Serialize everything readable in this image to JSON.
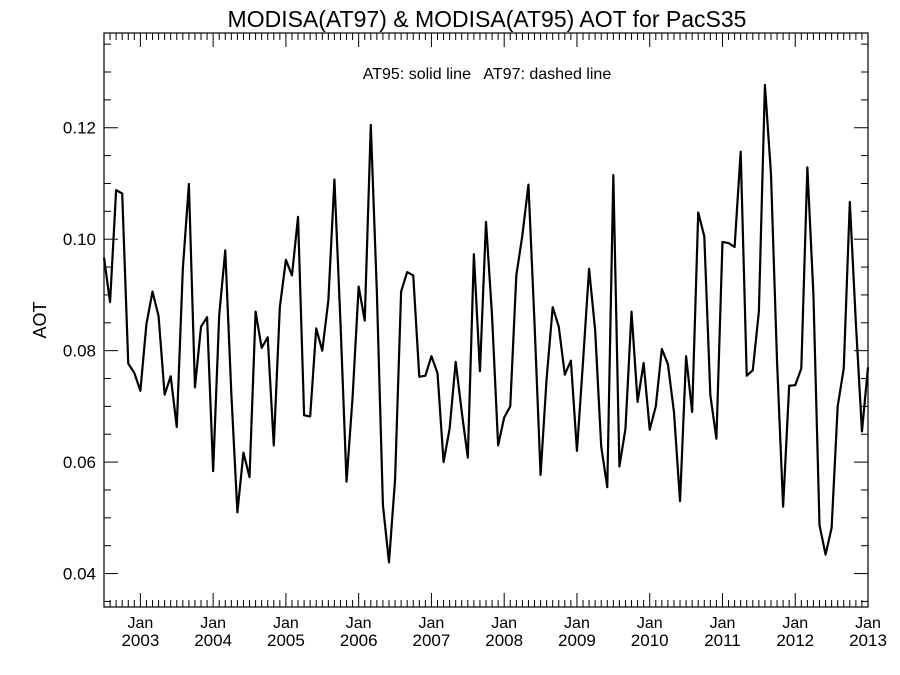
{
  "chart_data": {
    "type": "line",
    "title": "MODISA(AT97) & MODISA(AT95)  AOT for PacS35",
    "annotation": "AT95: solid line   AT97: dashed line",
    "xlabel": "",
    "ylabel": "AOT",
    "ylim": [
      0.034,
      0.137
    ],
    "xlim": [
      "2002-07",
      "2013-01"
    ],
    "yticks": [
      "0.04",
      "0.06",
      "0.08",
      "0.10",
      "0.12"
    ],
    "yticks_values": [
      0.04,
      0.06,
      0.08,
      0.1,
      0.12
    ],
    "xticks": [
      {
        "month": "Jan",
        "year": "2003",
        "date": "2003-01"
      },
      {
        "month": "Jan",
        "year": "2004",
        "date": "2004-01"
      },
      {
        "month": "Jan",
        "year": "2005",
        "date": "2005-01"
      },
      {
        "month": "Jan",
        "year": "2006",
        "date": "2006-01"
      },
      {
        "month": "Jan",
        "year": "2007",
        "date": "2007-01"
      },
      {
        "month": "Jan",
        "year": "2008",
        "date": "2008-01"
      },
      {
        "month": "Jan",
        "year": "2009",
        "date": "2009-01"
      },
      {
        "month": "Jan",
        "year": "2010",
        "date": "2010-01"
      },
      {
        "month": "Jan",
        "year": "2011",
        "date": "2011-01"
      },
      {
        "month": "Jan",
        "year": "2012",
        "date": "2012-01"
      },
      {
        "month": "Jan",
        "year": "2013",
        "date": "2013-01"
      }
    ],
    "grid": false,
    "series": [
      {
        "style": "solid",
        "color": "#000000",
        "points": [
          [
            "2002-07",
            0.0967
          ],
          [
            "2002-08",
            0.0887
          ],
          [
            "2002-09",
            0.1088
          ],
          [
            "2002-10",
            0.1082
          ],
          [
            "2002-11",
            0.0777
          ],
          [
            "2002-12",
            0.076
          ],
          [
            "2003-01",
            0.0728
          ],
          [
            "2003-02",
            0.0848
          ],
          [
            "2003-03",
            0.0906
          ],
          [
            "2003-04",
            0.0862
          ],
          [
            "2003-05",
            0.0721
          ],
          [
            "2003-06",
            0.0754
          ],
          [
            "2003-07",
            0.0663
          ],
          [
            "2003-08",
            0.0947
          ],
          [
            "2003-09",
            0.1099
          ],
          [
            "2003-10",
            0.0734
          ],
          [
            "2003-11",
            0.0843
          ],
          [
            "2003-12",
            0.086
          ],
          [
            "2004-01",
            0.0584
          ],
          [
            "2004-02",
            0.0864
          ],
          [
            "2004-03",
            0.098
          ],
          [
            "2004-04",
            0.0723
          ],
          [
            "2004-05",
            0.051
          ],
          [
            "2004-06",
            0.0617
          ],
          [
            "2004-07",
            0.0573
          ],
          [
            "2004-08",
            0.087
          ],
          [
            "2004-09",
            0.0805
          ],
          [
            "2004-10",
            0.0824
          ],
          [
            "2004-11",
            0.063
          ],
          [
            "2004-12",
            0.0878
          ],
          [
            "2005-01",
            0.0963
          ],
          [
            "2005-02",
            0.0935
          ],
          [
            "2005-03",
            0.104
          ],
          [
            "2005-04",
            0.0684
          ],
          [
            "2005-05",
            0.0682
          ],
          [
            "2005-06",
            0.084
          ],
          [
            "2005-07",
            0.08
          ],
          [
            "2005-08",
            0.089
          ],
          [
            "2005-09",
            0.1107
          ],
          [
            "2005-10",
            0.085
          ],
          [
            "2005-11",
            0.0565
          ],
          [
            "2005-12",
            0.0717
          ],
          [
            "2006-01",
            0.0915
          ],
          [
            "2006-02",
            0.0854
          ],
          [
            "2006-03",
            0.1205
          ],
          [
            "2006-04",
            0.0905
          ],
          [
            "2006-05",
            0.0523
          ],
          [
            "2006-06",
            0.042
          ],
          [
            "2006-07",
            0.0568
          ],
          [
            "2006-08",
            0.0906
          ],
          [
            "2006-09",
            0.0941
          ],
          [
            "2006-10",
            0.0935
          ],
          [
            "2006-11",
            0.0753
          ],
          [
            "2006-12",
            0.0755
          ],
          [
            "2007-01",
            0.079
          ],
          [
            "2007-02",
            0.076
          ],
          [
            "2007-03",
            0.06
          ],
          [
            "2007-04",
            0.066
          ],
          [
            "2007-05",
            0.078
          ],
          [
            "2007-06",
            0.069
          ],
          [
            "2007-07",
            0.0608
          ],
          [
            "2007-08",
            0.0973
          ],
          [
            "2007-09",
            0.0763
          ],
          [
            "2007-10",
            0.1031
          ],
          [
            "2007-11",
            0.0862
          ],
          [
            "2007-12",
            0.063
          ],
          [
            "2008-01",
            0.068
          ],
          [
            "2008-02",
            0.07
          ],
          [
            "2008-03",
            0.0935
          ],
          [
            "2008-04",
            0.1007
          ],
          [
            "2008-05",
            0.1098
          ],
          [
            "2008-06",
            0.085
          ],
          [
            "2008-07",
            0.0577
          ],
          [
            "2008-08",
            0.075
          ],
          [
            "2008-09",
            0.0878
          ],
          [
            "2008-10",
            0.0843
          ],
          [
            "2008-11",
            0.0757
          ],
          [
            "2008-12",
            0.0782
          ],
          [
            "2009-01",
            0.062
          ],
          [
            "2009-02",
            0.078
          ],
          [
            "2009-03",
            0.0947
          ],
          [
            "2009-04",
            0.0837
          ],
          [
            "2009-05",
            0.0628
          ],
          [
            "2009-06",
            0.0555
          ],
          [
            "2009-07",
            0.1115
          ],
          [
            "2009-08",
            0.0592
          ],
          [
            "2009-09",
            0.066
          ],
          [
            "2009-10",
            0.087
          ],
          [
            "2009-11",
            0.0708
          ],
          [
            "2009-12",
            0.0778
          ],
          [
            "2010-01",
            0.0658
          ],
          [
            "2010-02",
            0.07
          ],
          [
            "2010-03",
            0.0803
          ],
          [
            "2010-04",
            0.0776
          ],
          [
            "2010-05",
            0.069
          ],
          [
            "2010-06",
            0.053
          ],
          [
            "2010-07",
            0.079
          ],
          [
            "2010-08",
            0.069
          ],
          [
            "2010-09",
            0.1048
          ],
          [
            "2010-10",
            0.1005
          ],
          [
            "2010-11",
            0.072
          ],
          [
            "2010-12",
            0.0642
          ],
          [
            "2011-01",
            0.0995
          ],
          [
            "2011-02",
            0.0993
          ],
          [
            "2011-03",
            0.0986
          ],
          [
            "2011-04",
            0.1157
          ],
          [
            "2011-05",
            0.0755
          ],
          [
            "2011-06",
            0.0765
          ],
          [
            "2011-07",
            0.087
          ],
          [
            "2011-08",
            0.1277
          ],
          [
            "2011-09",
            0.1117
          ],
          [
            "2011-10",
            0.078
          ],
          [
            "2011-11",
            0.052
          ],
          [
            "2011-12",
            0.0737
          ],
          [
            "2012-01",
            0.0738
          ],
          [
            "2012-02",
            0.0768
          ],
          [
            "2012-03",
            0.1129
          ],
          [
            "2012-04",
            0.09
          ],
          [
            "2012-05",
            0.0487
          ],
          [
            "2012-06",
            0.0434
          ],
          [
            "2012-07",
            0.0482
          ],
          [
            "2012-08",
            0.07
          ],
          [
            "2012-09",
            0.0768
          ],
          [
            "2012-10",
            0.1067
          ],
          [
            "2012-11",
            0.085
          ],
          [
            "2012-12",
            0.0655
          ],
          [
            "2013-01",
            0.077
          ]
        ]
      }
    ]
  }
}
